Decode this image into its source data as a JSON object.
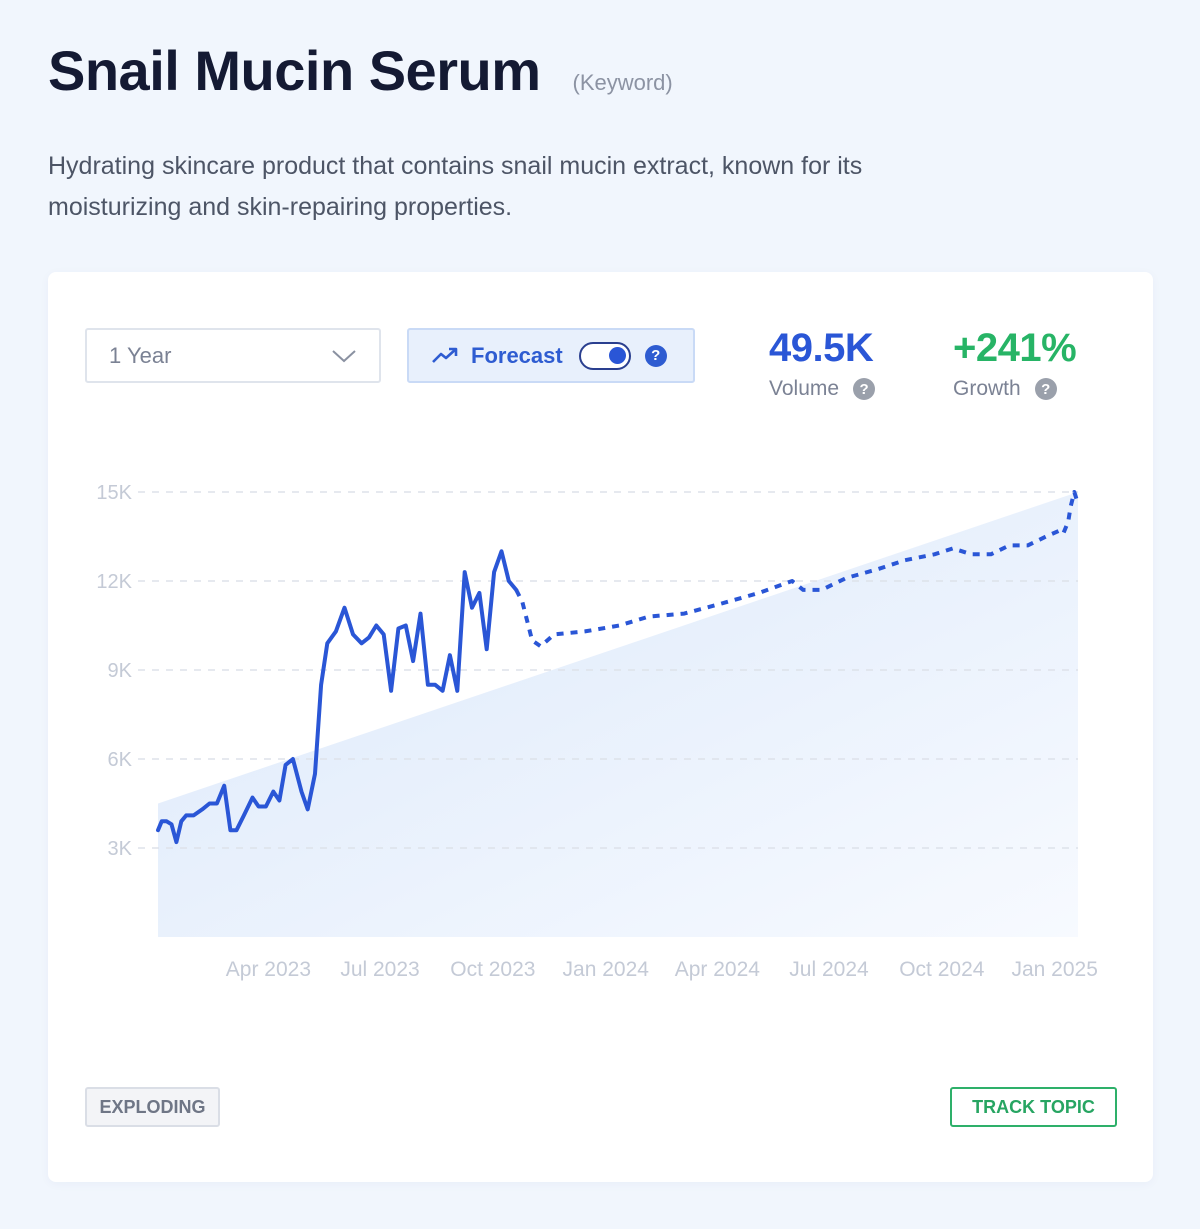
{
  "topic": {
    "title": "Snail Mucin Serum",
    "kind": "(Keyword)",
    "description": "Hydrating skincare product that contains snail mucin extract, known for its moisturizing and skin-repairing properties."
  },
  "controls": {
    "range_value": "1 Year",
    "forecast_label": "Forecast",
    "forecast_enabled": true,
    "help_glyph": "?"
  },
  "metrics": {
    "volume_value": "49.5K",
    "volume_label": "Volume",
    "growth_value": "+241%",
    "growth_label": "Growth"
  },
  "footer": {
    "status_badge": "EXPLODING",
    "track_label": "TRACK TOPIC"
  },
  "colors": {
    "accent": "#2a56d6",
    "growth": "#27b466",
    "fill": "#e3edfb"
  },
  "icons": [
    "trending-up-icon",
    "chevron-down-icon",
    "help-icon"
  ],
  "chart_data": {
    "type": "line",
    "title": "",
    "xlabel": "",
    "ylabel": "",
    "ylim": [
      0,
      15000
    ],
    "y_ticks": [
      3000,
      6000,
      9000,
      12000,
      15000
    ],
    "y_tick_labels": [
      "3K",
      "6K",
      "9K",
      "12K",
      "15K"
    ],
    "x_range": [
      "2023-01-01",
      "2025-01-20"
    ],
    "x_ticks": [
      "2023-04-01",
      "2023-07-01",
      "2023-10-01",
      "2024-01-01",
      "2024-04-01",
      "2024-07-01",
      "2024-10-01",
      "2025-01-01"
    ],
    "x_tick_labels": [
      "Apr 2023",
      "Jul 2023",
      "Oct 2023",
      "Jan 2024",
      "Apr 2024",
      "Jul 2024",
      "Oct 2024",
      "Jan 2025"
    ],
    "grid": true,
    "legend": "none",
    "series": [
      {
        "role": "actual",
        "style": "solid",
        "points": [
          [
            "2023-01-01",
            3600
          ],
          [
            "2023-01-04",
            3900
          ],
          [
            "2023-01-08",
            3900
          ],
          [
            "2023-01-12",
            3800
          ],
          [
            "2023-01-16",
            3200
          ],
          [
            "2023-01-20",
            3900
          ],
          [
            "2023-01-24",
            4100
          ],
          [
            "2023-01-30",
            4100
          ],
          [
            "2023-02-06",
            4300
          ],
          [
            "2023-02-12",
            4500
          ],
          [
            "2023-02-18",
            4500
          ],
          [
            "2023-02-24",
            5100
          ],
          [
            "2023-03-01",
            3600
          ],
          [
            "2023-03-06",
            3600
          ],
          [
            "2023-03-12",
            4100
          ],
          [
            "2023-03-19",
            4700
          ],
          [
            "2023-03-24",
            4400
          ],
          [
            "2023-03-30",
            4400
          ],
          [
            "2023-04-05",
            4900
          ],
          [
            "2023-04-10",
            4600
          ],
          [
            "2023-04-15",
            5800
          ],
          [
            "2023-04-21",
            6000
          ],
          [
            "2023-04-28",
            4900
          ],
          [
            "2023-05-03",
            4300
          ],
          [
            "2023-05-09",
            5500
          ],
          [
            "2023-05-14",
            8500
          ],
          [
            "2023-05-19",
            9900
          ],
          [
            "2023-05-26",
            10300
          ],
          [
            "2023-06-02",
            11100
          ],
          [
            "2023-06-09",
            10200
          ],
          [
            "2023-06-16",
            9900
          ],
          [
            "2023-06-22",
            10100
          ],
          [
            "2023-06-28",
            10500
          ],
          [
            "2023-07-04",
            10200
          ],
          [
            "2023-07-10",
            8300
          ],
          [
            "2023-07-16",
            10400
          ],
          [
            "2023-07-22",
            10500
          ],
          [
            "2023-07-28",
            9300
          ],
          [
            "2023-08-03",
            10900
          ],
          [
            "2023-08-09",
            8500
          ],
          [
            "2023-08-15",
            8500
          ],
          [
            "2023-08-21",
            8300
          ],
          [
            "2023-08-27",
            9500
          ],
          [
            "2023-09-02",
            8300
          ],
          [
            "2023-09-08",
            12300
          ],
          [
            "2023-09-14",
            11100
          ],
          [
            "2023-09-20",
            11600
          ],
          [
            "2023-09-26",
            9700
          ],
          [
            "2023-10-02",
            12300
          ],
          [
            "2023-10-08",
            13000
          ],
          [
            "2023-10-14",
            12000
          ],
          [
            "2023-10-20",
            11700
          ]
        ]
      },
      {
        "role": "forecast",
        "style": "dashed",
        "points": [
          [
            "2023-10-20",
            11700
          ],
          [
            "2023-10-25",
            11300
          ],
          [
            "2023-11-02",
            10000
          ],
          [
            "2023-11-09",
            9800
          ],
          [
            "2023-11-20",
            10200
          ],
          [
            "2023-12-15",
            10300
          ],
          [
            "2024-01-12",
            10500
          ],
          [
            "2024-02-05",
            10800
          ],
          [
            "2024-03-05",
            10900
          ],
          [
            "2024-04-01",
            11200
          ],
          [
            "2024-05-05",
            11600
          ],
          [
            "2024-06-01",
            12000
          ],
          [
            "2024-06-10",
            11700
          ],
          [
            "2024-06-25",
            11700
          ],
          [
            "2024-07-15",
            12100
          ],
          [
            "2024-08-10",
            12400
          ],
          [
            "2024-09-01",
            12700
          ],
          [
            "2024-09-25",
            12900
          ],
          [
            "2024-10-10",
            13100
          ],
          [
            "2024-10-25",
            12900
          ],
          [
            "2024-11-10",
            12900
          ],
          [
            "2024-11-25",
            13200
          ],
          [
            "2024-12-10",
            13200
          ],
          [
            "2024-12-25",
            13500
          ],
          [
            "2025-01-05",
            13700
          ],
          [
            "2025-01-08",
            13600
          ],
          [
            "2025-01-12",
            14000
          ],
          [
            "2025-01-14",
            14500
          ],
          [
            "2025-01-17",
            15000
          ],
          [
            "2025-01-20",
            14600
          ]
        ]
      }
    ],
    "trend_area": {
      "start": [
        "2023-01-01",
        4500
      ],
      "end": [
        "2025-01-20",
        15000
      ]
    }
  }
}
